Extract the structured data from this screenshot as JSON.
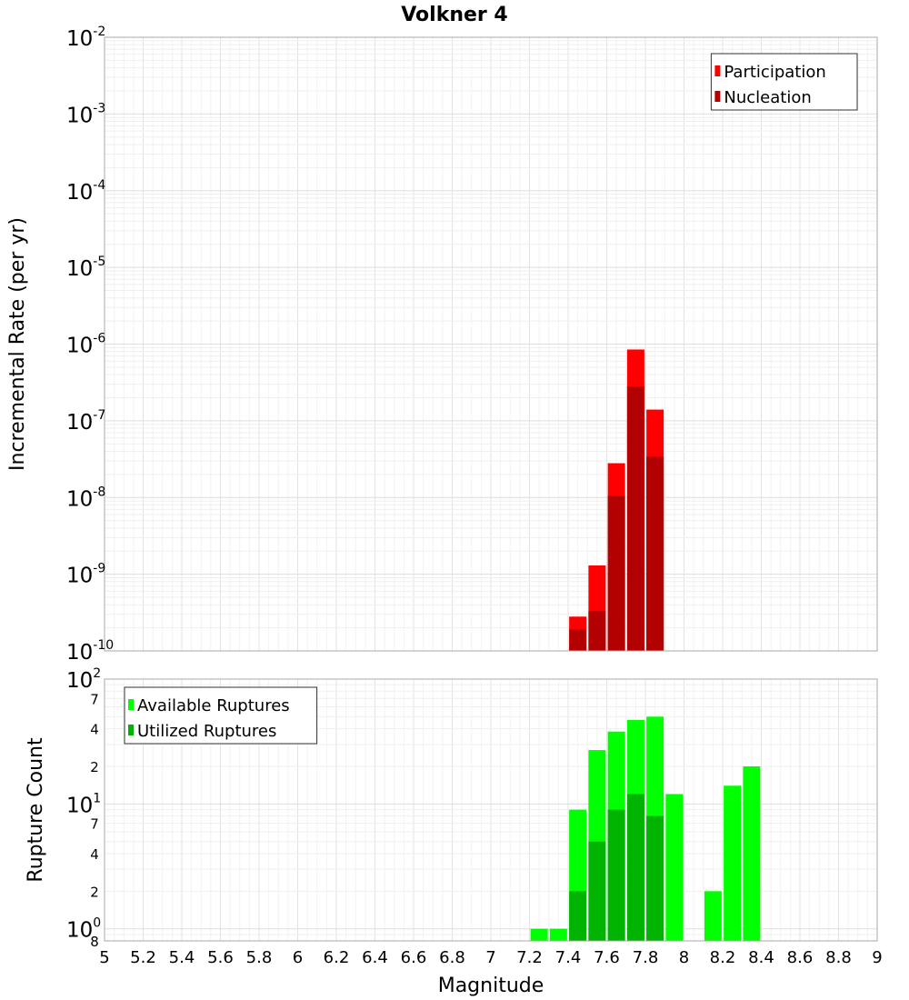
{
  "title": "Volkner 4",
  "colors": {
    "participation": "#ff0000",
    "nucleation": "#b30000",
    "available": "#00ff00",
    "utilized": "#00b300",
    "grid": "#e8e8e8",
    "frame": "#aaaaaa"
  },
  "chart_data": [
    {
      "id": "rates",
      "type": "bar",
      "y_scale": "log",
      "ylabel": "Incremental Rate (per yr)",
      "ylim": [
        1e-10,
        0.01
      ],
      "xlim": [
        5,
        9
      ],
      "y_ticks": [
        {
          "base": "10",
          "exp": "-2",
          "value": 0.01
        },
        {
          "base": "10",
          "exp": "-3",
          "value": 0.001
        },
        {
          "base": "10",
          "exp": "-4",
          "value": 0.0001
        },
        {
          "base": "10",
          "exp": "-5",
          "value": 1e-05
        },
        {
          "base": "10",
          "exp": "-6",
          "value": 1e-06
        },
        {
          "base": "10",
          "exp": "-7",
          "value": 1e-07
        },
        {
          "base": "10",
          "exp": "-8",
          "value": 1e-08
        },
        {
          "base": "10",
          "exp": "-9",
          "value": 1e-09
        },
        {
          "base": "10",
          "exp": "-10",
          "value": 1e-10
        }
      ],
      "series": [
        {
          "name": "Participation",
          "color": "#ff0000",
          "x": [
            7.45,
            7.55,
            7.65,
            7.75,
            7.85
          ],
          "values": [
            2.8e-10,
            1.3e-09,
            2.8e-08,
            8.5e-07,
            1.4e-07
          ]
        },
        {
          "name": "Nucleation",
          "color": "#b30000",
          "x": [
            7.45,
            7.55,
            7.65,
            7.75,
            7.85
          ],
          "values": [
            1.9e-10,
            3.3e-10,
            1.05e-08,
            2.8e-07,
            3.4e-08
          ]
        }
      ],
      "legend": {
        "position": "top-right"
      }
    },
    {
      "id": "counts",
      "type": "bar",
      "y_scale": "log",
      "ylabel": "Rupture Count",
      "ylim": [
        0.8,
        100
      ],
      "xlim": [
        5,
        9
      ],
      "y_ticks": [
        {
          "base": "10",
          "exp": "2",
          "value": 100
        },
        {
          "base": "",
          "exp": "",
          "label": "7",
          "value": 70
        },
        {
          "base": "",
          "exp": "",
          "label": "4",
          "value": 40
        },
        {
          "base": "",
          "exp": "",
          "label": "2",
          "value": 20
        },
        {
          "base": "10",
          "exp": "1",
          "value": 10
        },
        {
          "base": "",
          "exp": "",
          "label": "7",
          "value": 7
        },
        {
          "base": "",
          "exp": "",
          "label": "4",
          "value": 4
        },
        {
          "base": "",
          "exp": "",
          "label": "2",
          "value": 2
        },
        {
          "base": "10",
          "exp": "0",
          "value": 1
        },
        {
          "base": "",
          "exp": "",
          "label": "8",
          "value": 0.8
        }
      ],
      "series": [
        {
          "name": "Available Ruptures",
          "color": "#00ff00",
          "x": [
            7.25,
            7.35,
            7.45,
            7.55,
            7.65,
            7.75,
            7.85,
            7.95,
            8.15,
            8.25,
            8.35
          ],
          "values": [
            1,
            1,
            9,
            27,
            38,
            47,
            50,
            12,
            2,
            14,
            20
          ]
        },
        {
          "name": "Utilized Ruptures",
          "color": "#00b300",
          "x": [
            7.45,
            7.55,
            7.65,
            7.75,
            7.85
          ],
          "values": [
            2,
            5,
            9,
            12,
            8
          ]
        }
      ],
      "legend": {
        "position": "top-left"
      }
    }
  ],
  "x_axis": {
    "xlabel": "Magnitude",
    "ticks": [
      "5",
      "5.2",
      "5.4",
      "5.6",
      "5.8",
      "6",
      "6.2",
      "6.4",
      "6.6",
      "6.8",
      "7",
      "7.2",
      "7.4",
      "7.6",
      "7.8",
      "8",
      "8.2",
      "8.4",
      "8.6",
      "8.8",
      "9"
    ]
  }
}
